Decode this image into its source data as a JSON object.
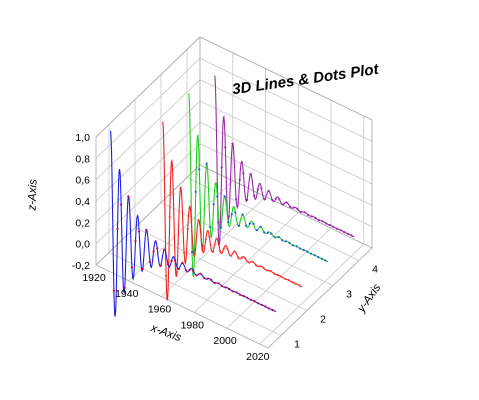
{
  "chart_data": {
    "type": "line",
    "title": "3D Lines & Dots Plot",
    "xlabel": "x-Axis",
    "ylabel": "y-Axis",
    "zlabel": "z-Axis",
    "xlim": [
      1920,
      2025
    ],
    "ylim": [
      0.5,
      4.5
    ],
    "zlim": [
      -0.2,
      1.0
    ],
    "x_ticks": [
      "1920",
      "1940",
      "1960",
      "1980",
      "2000",
      "2020"
    ],
    "y_ticks": [
      "1",
      "2",
      "3",
      "4"
    ],
    "z_ticks": [
      "-0,2",
      "0,0",
      "0,2",
      "0,4",
      "0,6",
      "0,8",
      "1,0"
    ],
    "grid": true,
    "series": [
      {
        "y": 1,
        "color": "#1f1fe0",
        "dot_color": "#cc0044",
        "x_start": 1921,
        "x_end": 2022,
        "amplitude": 0.95,
        "decay": 0.075,
        "period": 5.5
      },
      {
        "y": 2,
        "color": "#ee2222",
        "dot_color": "#ff3b3b",
        "x_start": 1937,
        "x_end": 2022,
        "amplitude": 0.92,
        "decay": 0.08,
        "period": 5.5
      },
      {
        "y": 3,
        "color": "#22cc22",
        "dot_color": "#1f5fd8",
        "x_start": 1937,
        "x_end": 2022,
        "amplitude": 0.95,
        "decay": 0.085,
        "period": 5.5
      },
      {
        "y": 4,
        "color": "#9a2aa8",
        "dot_color": "#9a2aa8",
        "x_start": 1937,
        "x_end": 2022,
        "amplitude": 0.88,
        "decay": 0.09,
        "period": 5.5
      }
    ]
  }
}
